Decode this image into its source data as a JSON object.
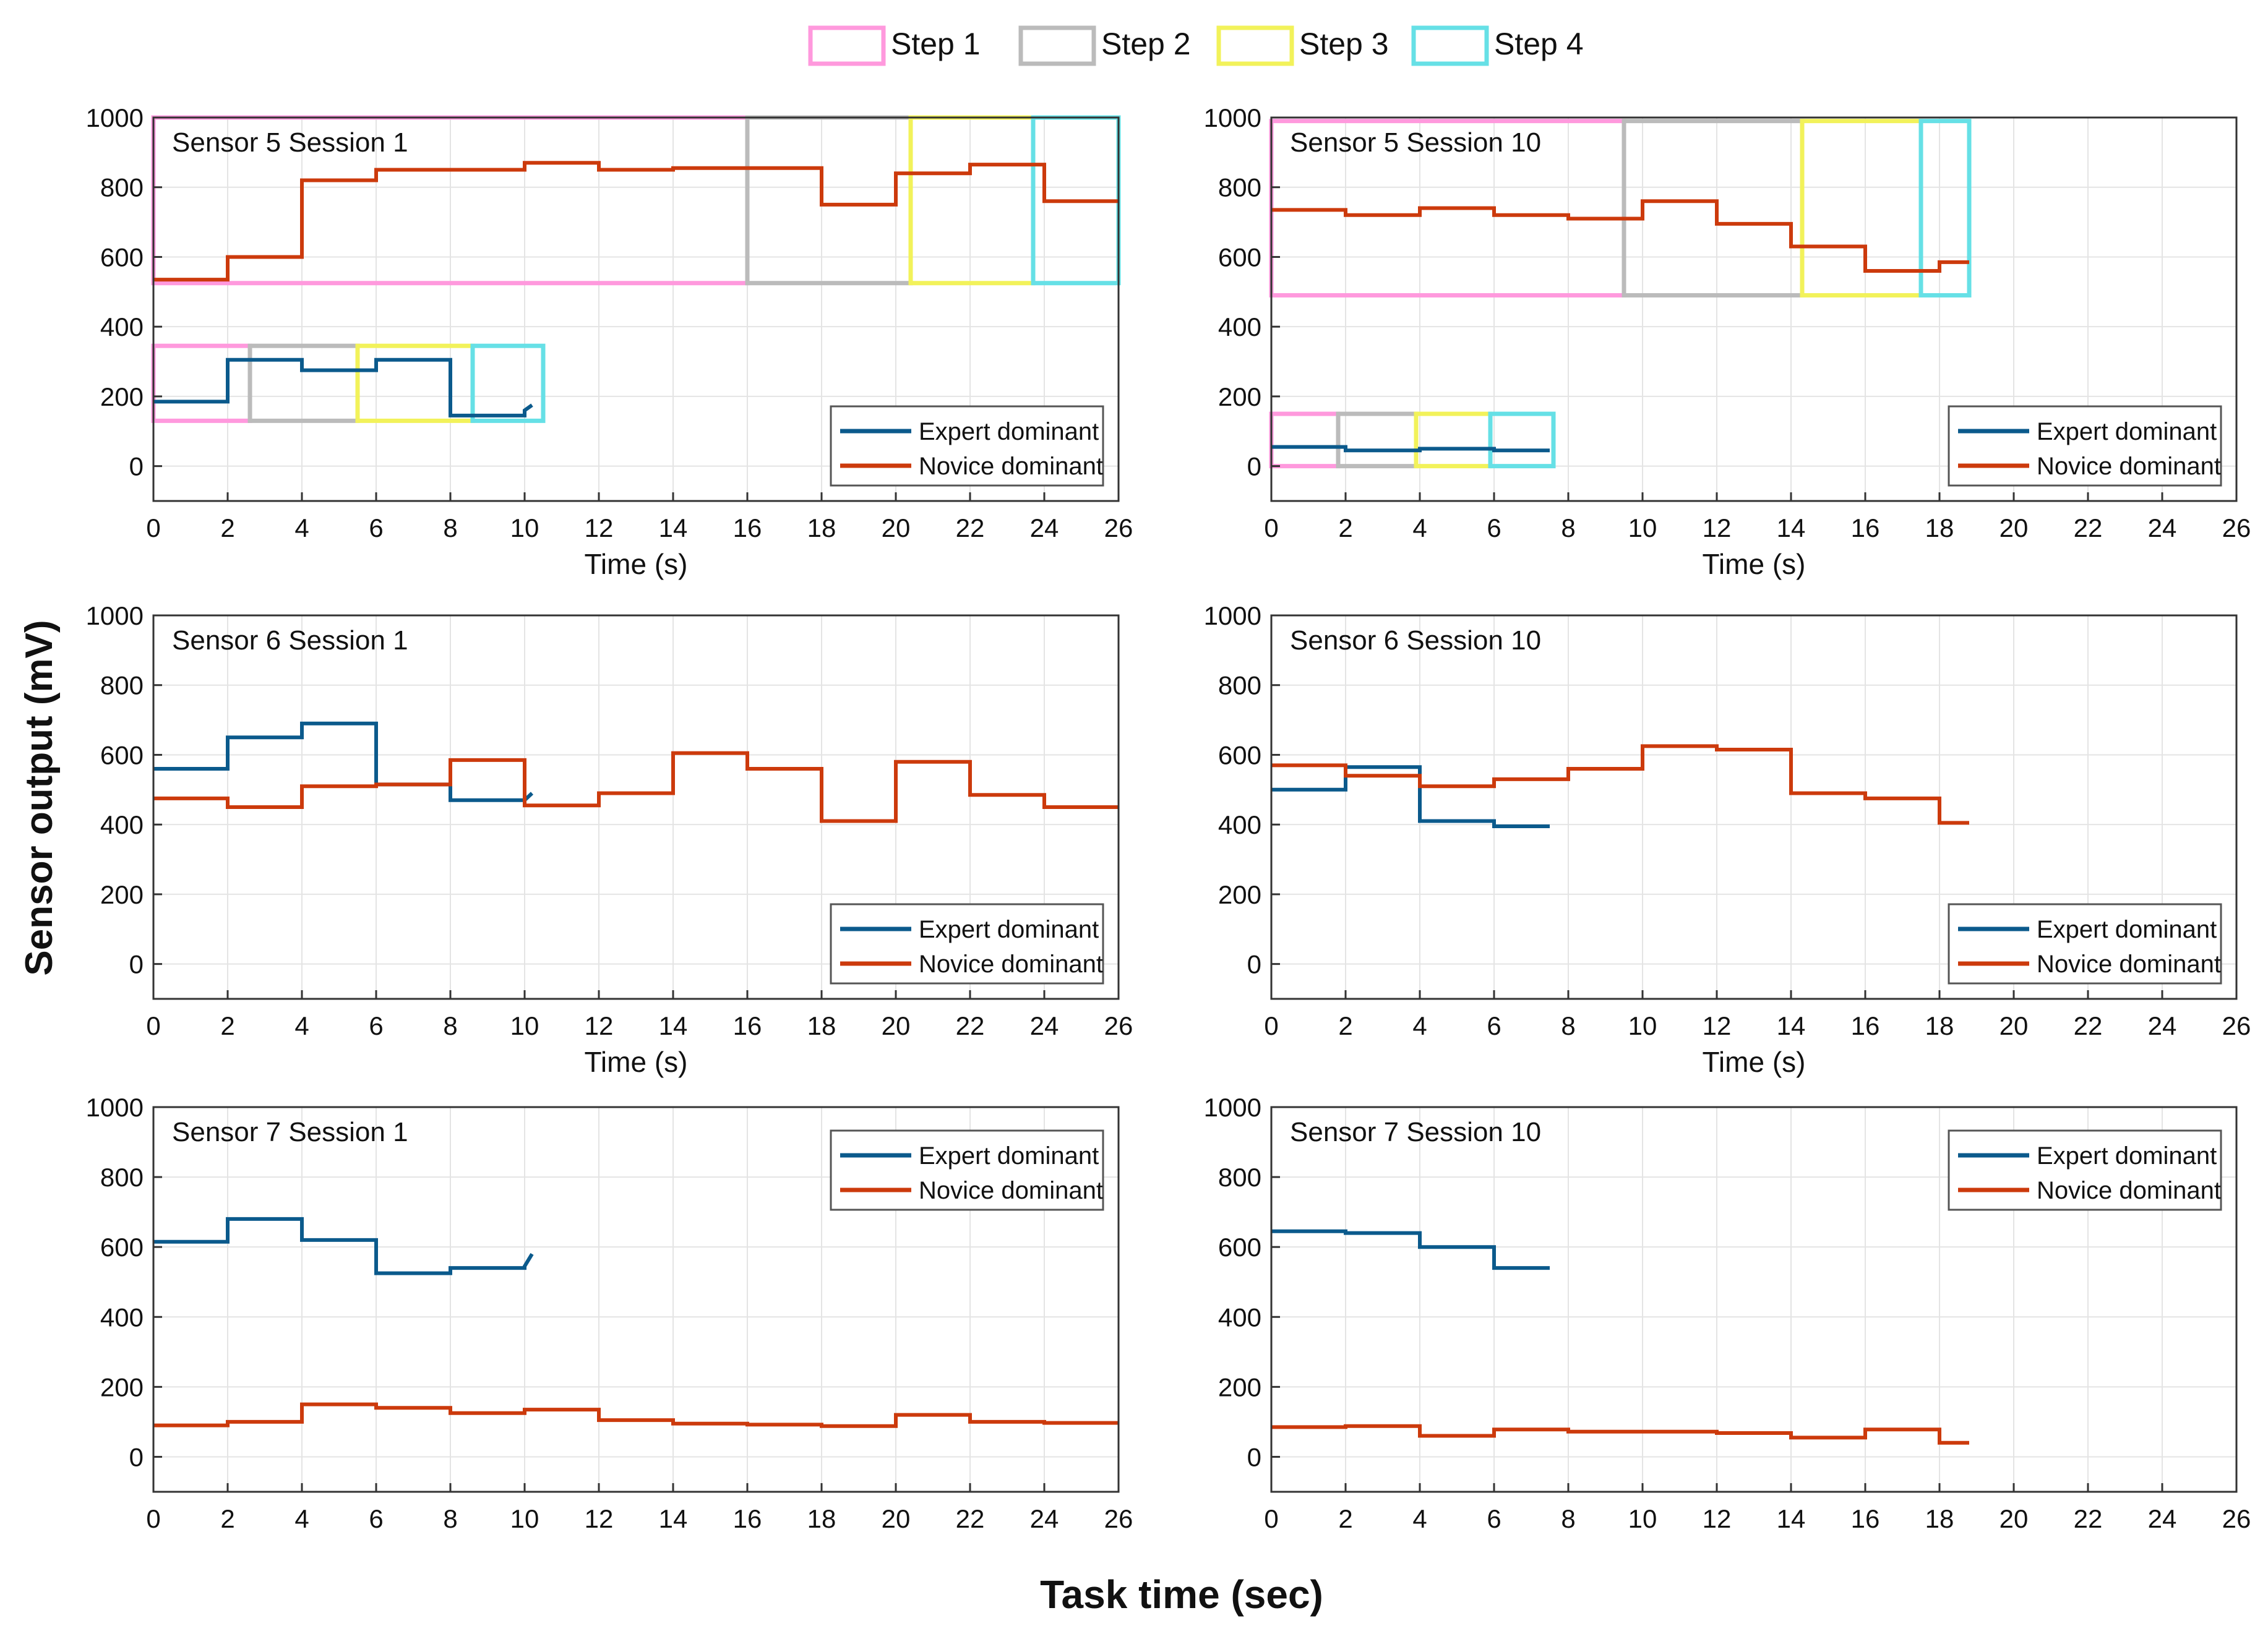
{
  "figure": {
    "ylabel": "Sensor output (mV)",
    "xlabel": "Task time (sec)"
  },
  "step_legend": [
    {
      "label": "Step 1",
      "color": "#ff99dd"
    },
    {
      "label": "Step 2",
      "color": "#bbbbbb"
    },
    {
      "label": "Step 3",
      "color": "#f2f25a"
    },
    {
      "label": "Step 4",
      "color": "#66e0e6"
    }
  ],
  "colors": {
    "expert": "#0b5a8c",
    "novice": "#cc3a0c",
    "grid": "#e4e4e4",
    "frame": "#333333"
  },
  "chart_data": [
    {
      "type": "line",
      "title": "Sensor 5 Session 1",
      "xlabel": "Time (s)",
      "ylabel": "",
      "xlim": [
        0,
        26
      ],
      "ylim": [
        -100,
        1000
      ],
      "xticks": [
        0,
        2,
        4,
        6,
        8,
        10,
        12,
        14,
        16,
        18,
        20,
        22,
        24,
        26
      ],
      "yticks": [
        0,
        200,
        400,
        600,
        800,
        1000
      ],
      "legend_position": "bottom-right",
      "series": [
        {
          "name": "Expert dominant",
          "x": [
            0,
            2,
            2,
            4,
            4,
            6,
            6,
            8,
            8,
            10,
            10,
            10.2
          ],
          "y": [
            185,
            185,
            305,
            305,
            275,
            275,
            305,
            305,
            145,
            145,
            160,
            175
          ]
        },
        {
          "name": "Novice dominant",
          "x": [
            0,
            2,
            2,
            4,
            4,
            6,
            6,
            10,
            10,
            12,
            12,
            14,
            14,
            18,
            18,
            20,
            20,
            22,
            22,
            24,
            24,
            26
          ],
          "y": [
            535,
            535,
            600,
            600,
            820,
            820,
            850,
            850,
            870,
            870,
            850,
            850,
            855,
            855,
            750,
            750,
            840,
            840,
            865,
            865,
            760,
            760
          ]
        }
      ],
      "step_boxes": [
        {
          "step": "Step 1",
          "x": [
            0,
            16
          ],
          "y": [
            525,
            1000
          ]
        },
        {
          "step": "Step 2",
          "x": [
            16,
            20.4
          ],
          "y": [
            525,
            1000
          ]
        },
        {
          "step": "Step 3",
          "x": [
            20.4,
            23.7
          ],
          "y": [
            525,
            1000
          ]
        },
        {
          "step": "Step 4",
          "x": [
            23.7,
            26
          ],
          "y": [
            525,
            1000
          ]
        },
        {
          "step": "Step 1",
          "x": [
            0,
            2.6
          ],
          "y": [
            130,
            345
          ]
        },
        {
          "step": "Step 2",
          "x": [
            2.6,
            5.5
          ],
          "y": [
            130,
            345
          ]
        },
        {
          "step": "Step 3",
          "x": [
            5.5,
            8.6
          ],
          "y": [
            130,
            345
          ]
        },
        {
          "step": "Step 4",
          "x": [
            8.6,
            10.5
          ],
          "y": [
            130,
            345
          ]
        }
      ]
    },
    {
      "type": "line",
      "title": "Sensor 5 Session 10",
      "xlabel": "Time (s)",
      "ylabel": "",
      "xlim": [
        0,
        26
      ],
      "ylim": [
        -100,
        1000
      ],
      "xticks": [
        0,
        2,
        4,
        6,
        8,
        10,
        12,
        14,
        16,
        18,
        20,
        22,
        24,
        26
      ],
      "yticks": [
        0,
        200,
        400,
        600,
        800,
        1000
      ],
      "legend_position": "bottom-right",
      "series": [
        {
          "name": "Expert dominant",
          "x": [
            0,
            2,
            2,
            4,
            4,
            6,
            6,
            7.5
          ],
          "y": [
            55,
            55,
            45,
            45,
            50,
            50,
            45,
            45
          ]
        },
        {
          "name": "Novice dominant",
          "x": [
            0,
            2,
            2,
            4,
            4,
            6,
            6,
            8,
            8,
            10,
            10,
            12,
            12,
            14,
            14,
            16,
            16,
            18,
            18,
            18.8
          ],
          "y": [
            735,
            735,
            720,
            720,
            740,
            740,
            720,
            720,
            710,
            710,
            760,
            760,
            695,
            695,
            630,
            630,
            560,
            560,
            585,
            585
          ]
        }
      ],
      "step_boxes": [
        {
          "step": "Step 1",
          "x": [
            0,
            9.5
          ],
          "y": [
            490,
            990
          ]
        },
        {
          "step": "Step 2",
          "x": [
            9.5,
            14.3
          ],
          "y": [
            490,
            990
          ]
        },
        {
          "step": "Step 3",
          "x": [
            14.3,
            17.5
          ],
          "y": [
            490,
            990
          ]
        },
        {
          "step": "Step 4",
          "x": [
            17.5,
            18.8
          ],
          "y": [
            490,
            990
          ]
        },
        {
          "step": "Step 1",
          "x": [
            0,
            1.8
          ],
          "y": [
            0,
            150
          ]
        },
        {
          "step": "Step 2",
          "x": [
            1.8,
            3.9
          ],
          "y": [
            0,
            150
          ]
        },
        {
          "step": "Step 3",
          "x": [
            3.9,
            5.9
          ],
          "y": [
            0,
            150
          ]
        },
        {
          "step": "Step 4",
          "x": [
            5.9,
            7.6
          ],
          "y": [
            0,
            150
          ]
        }
      ]
    },
    {
      "type": "line",
      "title": "Sensor 6 Session 1",
      "xlabel": "Time (s)",
      "ylabel": "",
      "xlim": [
        0,
        26
      ],
      "ylim": [
        -100,
        1000
      ],
      "xticks": [
        0,
        2,
        4,
        6,
        8,
        10,
        12,
        14,
        16,
        18,
        20,
        22,
        24,
        26
      ],
      "yticks": [
        0,
        200,
        400,
        600,
        800,
        1000
      ],
      "legend_position": "bottom-right",
      "series": [
        {
          "name": "Expert dominant",
          "x": [
            0,
            2,
            2,
            4,
            4,
            6,
            6,
            8,
            8,
            10,
            10,
            10.2
          ],
          "y": [
            560,
            560,
            650,
            650,
            690,
            690,
            515,
            515,
            470,
            470,
            470,
            490
          ]
        },
        {
          "name": "Novice dominant",
          "x": [
            0,
            2,
            2,
            4,
            4,
            6,
            6,
            8,
            8,
            10,
            10,
            12,
            12,
            14,
            14,
            16,
            16,
            18,
            18,
            20,
            20,
            22,
            22,
            24,
            24,
            26
          ],
          "y": [
            475,
            475,
            450,
            450,
            510,
            510,
            515,
            515,
            585,
            585,
            455,
            455,
            490,
            490,
            605,
            605,
            560,
            560,
            410,
            410,
            580,
            580,
            485,
            485,
            450,
            450
          ]
        }
      ],
      "step_boxes": []
    },
    {
      "type": "line",
      "title": "Sensor 6 Session 10",
      "xlabel": "Time (s)",
      "ylabel": "",
      "xlim": [
        0,
        26
      ],
      "ylim": [
        -100,
        1000
      ],
      "xticks": [
        0,
        2,
        4,
        6,
        8,
        10,
        12,
        14,
        16,
        18,
        20,
        22,
        24,
        26
      ],
      "yticks": [
        0,
        200,
        400,
        600,
        800,
        1000
      ],
      "legend_position": "bottom-right",
      "series": [
        {
          "name": "Expert dominant",
          "x": [
            0,
            2,
            2,
            4,
            4,
            6,
            6,
            7.5
          ],
          "y": [
            500,
            500,
            565,
            565,
            410,
            410,
            395,
            395
          ]
        },
        {
          "name": "Novice dominant",
          "x": [
            0,
            2,
            2,
            4,
            4,
            6,
            6,
            8,
            8,
            10,
            10,
            12,
            12,
            14,
            14,
            16,
            16,
            18,
            18,
            18.8
          ],
          "y": [
            570,
            570,
            540,
            540,
            510,
            510,
            530,
            530,
            560,
            560,
            625,
            625,
            615,
            615,
            490,
            490,
            475,
            475,
            405,
            405
          ]
        }
      ],
      "step_boxes": []
    },
    {
      "type": "line",
      "title": "Sensor 7 Session 1",
      "xlabel": "",
      "ylabel": "",
      "xlim": [
        0,
        26
      ],
      "ylim": [
        -100,
        1000
      ],
      "xticks": [
        0,
        2,
        4,
        6,
        8,
        10,
        12,
        14,
        16,
        18,
        20,
        22,
        24,
        26
      ],
      "yticks": [
        0,
        200,
        400,
        600,
        800,
        1000
      ],
      "legend_position": "top-right",
      "series": [
        {
          "name": "Expert dominant",
          "x": [
            0,
            2,
            2,
            4,
            4,
            6,
            6,
            8,
            8,
            10,
            10,
            10.2
          ],
          "y": [
            615,
            615,
            680,
            680,
            620,
            620,
            525,
            525,
            540,
            540,
            545,
            580
          ]
        },
        {
          "name": "Novice dominant",
          "x": [
            0,
            2,
            2,
            4,
            4,
            6,
            6,
            8,
            8,
            10,
            10,
            12,
            12,
            14,
            14,
            16,
            16,
            18,
            18,
            20,
            20,
            22,
            22,
            24,
            24,
            26
          ],
          "y": [
            90,
            90,
            100,
            100,
            150,
            150,
            140,
            140,
            125,
            125,
            135,
            135,
            105,
            105,
            95,
            95,
            92,
            92,
            88,
            88,
            120,
            120,
            100,
            100,
            97,
            97
          ]
        }
      ],
      "step_boxes": []
    },
    {
      "type": "line",
      "title": "Sensor 7 Session 10",
      "xlabel": "",
      "ylabel": "",
      "xlim": [
        0,
        26
      ],
      "ylim": [
        -100,
        1000
      ],
      "xticks": [
        0,
        2,
        4,
        6,
        8,
        10,
        12,
        14,
        16,
        18,
        20,
        22,
        24,
        26
      ],
      "yticks": [
        0,
        200,
        400,
        600,
        800,
        1000
      ],
      "legend_position": "top-right",
      "series": [
        {
          "name": "Expert dominant",
          "x": [
            0,
            2,
            2,
            4,
            4,
            6,
            6,
            7.5
          ],
          "y": [
            645,
            645,
            640,
            640,
            600,
            600,
            540,
            540
          ]
        },
        {
          "name": "Novice dominant",
          "x": [
            0,
            2,
            2,
            4,
            4,
            6,
            6,
            8,
            8,
            10,
            10,
            12,
            12,
            14,
            14,
            16,
            16,
            18,
            18,
            18.8
          ],
          "y": [
            85,
            85,
            88,
            88,
            60,
            60,
            78,
            78,
            72,
            72,
            72,
            72,
            68,
            68,
            55,
            55,
            78,
            78,
            40,
            40
          ]
        }
      ],
      "step_boxes": []
    }
  ]
}
